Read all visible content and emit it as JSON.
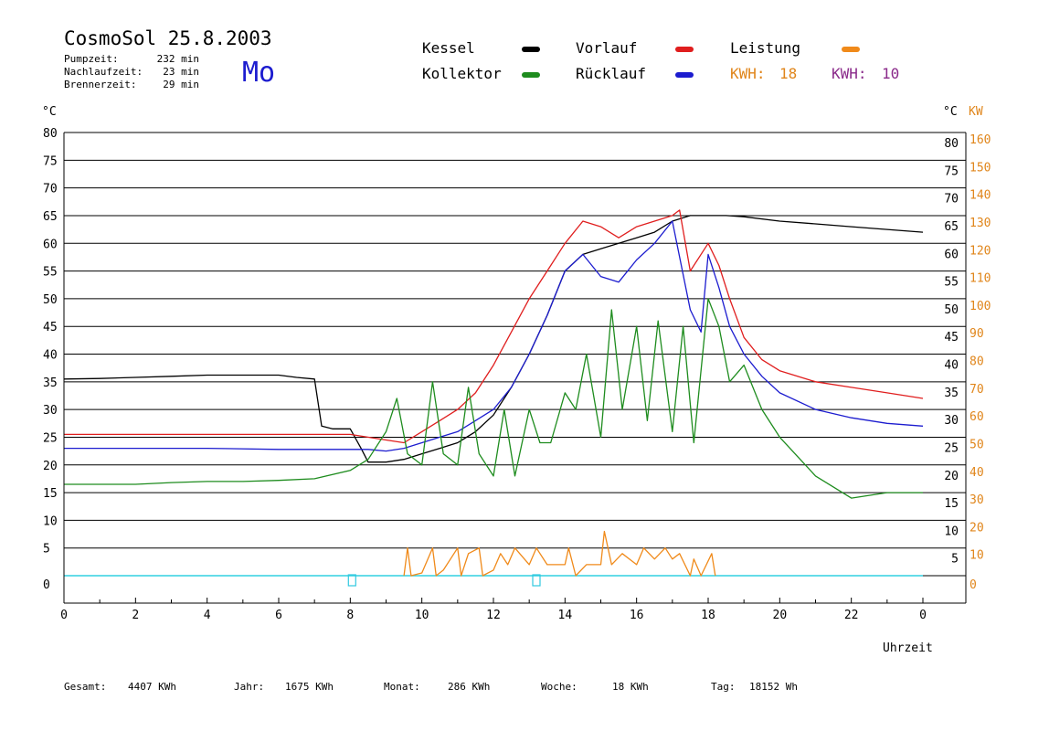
{
  "header": {
    "title": "CosmoSol 25.8.2003",
    "weekday": "Mo",
    "stats": [
      {
        "label": "Pumpzeit:",
        "value": "232 min"
      },
      {
        "label": "Nachlaufzeit:",
        "value": "23 min"
      },
      {
        "label": "Brennerzeit:",
        "value": "29 min"
      }
    ]
  },
  "legend": {
    "kessel": {
      "label": "Kessel",
      "color": "#000000"
    },
    "vorlauf": {
      "label": "Vorlauf",
      "color": "#e01e1e"
    },
    "leistung": {
      "label": "Leistung",
      "color": "#f08a1a"
    },
    "kollektor": {
      "label": "Kollektor",
      "color": "#1e8c1e"
    },
    "ruecklauf": {
      "label": "Rücklauf",
      "color": "#1c1ccf"
    },
    "kwh_orange": {
      "label": "KWH:",
      "value": "18",
      "color": "#e0851a"
    },
    "kwh_purple": {
      "label": "KWH:",
      "value": "10",
      "color": "#8a2a8a"
    }
  },
  "footer": {
    "gesamt": {
      "label": "Gesamt:",
      "value": "4407 KWh"
    },
    "jahr": {
      "label": "Jahr:",
      "value": "1675 KWh"
    },
    "monat": {
      "label": "Monat:",
      "value": "286 KWh"
    },
    "woche": {
      "label": "Woche:",
      "value": "18 KWh"
    },
    "tag": {
      "label": "Tag:",
      "value": "18152 Wh"
    }
  },
  "chart_data": {
    "type": "line",
    "xlabel": "Uhrzeit",
    "x_ticks": [
      "0",
      "2",
      "4",
      "6",
      "8",
      "10",
      "12",
      "14",
      "16",
      "18",
      "20",
      "22",
      "0"
    ],
    "xlim": [
      0,
      24
    ],
    "ylabel_left": "°C",
    "ylabel_right": "°C",
    "ylabel_right2": "KW",
    "ylim": [
      0,
      80
    ],
    "y_ticks": [
      "0",
      "5",
      "10",
      "15",
      "20",
      "25",
      "30",
      "35",
      "40",
      "45",
      "50",
      "55",
      "60",
      "65",
      "70",
      "75",
      "80"
    ],
    "y_ticks_right": [
      "",
      "5",
      "10",
      "15",
      "20",
      "25",
      "30",
      "35",
      "40",
      "45",
      "50",
      "55",
      "60",
      "65",
      "70",
      "75",
      "80"
    ],
    "kw_ticks": [
      "0",
      "10",
      "20",
      "30",
      "40",
      "50",
      "60",
      "70",
      "80",
      "90",
      "100",
      "110",
      "120",
      "130",
      "140",
      "150",
      "160"
    ],
    "grid": true,
    "series": [
      {
        "name": "Kessel",
        "color": "#000000",
        "x": [
          0,
          1,
          2,
          3,
          4,
          5,
          6,
          6.5,
          7,
          7.2,
          7.5,
          8,
          8.3,
          8.5,
          9,
          9.5,
          10,
          10.5,
          11,
          11.5,
          12,
          12.5,
          13,
          13.5,
          14,
          14.5,
          15,
          15.5,
          16,
          16.5,
          17,
          17.5,
          18,
          18.5,
          19,
          20,
          21,
          22,
          23,
          24
        ],
        "y": [
          35.5,
          35.6,
          35.8,
          36,
          36.2,
          36.2,
          36.2,
          35.8,
          35.5,
          27,
          26.5,
          26.5,
          23,
          20.5,
          20.5,
          21,
          22,
          23,
          24,
          26,
          29,
          34,
          40,
          47,
          55,
          58,
          59,
          60,
          61,
          62,
          64,
          65,
          65,
          65,
          64.8,
          64,
          63.5,
          63,
          62.5,
          62
        ]
      },
      {
        "name": "Vorlauf",
        "color": "#e01e1e",
        "x": [
          0,
          2,
          4,
          6,
          8,
          9,
          9.5,
          10,
          10.5,
          11,
          11.5,
          12,
          12.5,
          13,
          13.5,
          14,
          14.5,
          15,
          15.5,
          16,
          16.5,
          17,
          17.2,
          17.5,
          18,
          18.3,
          18.6,
          19,
          19.5,
          20,
          21,
          22,
          23,
          24
        ],
        "y": [
          25.5,
          25.5,
          25.5,
          25.5,
          25.5,
          24.5,
          24,
          26,
          28,
          30,
          33,
          38,
          44,
          50,
          55,
          60,
          64,
          63,
          61,
          63,
          64,
          65,
          66,
          55,
          60,
          56,
          50,
          43,
          39,
          37,
          35,
          34,
          33,
          32
        ]
      },
      {
        "name": "Rücklauf",
        "color": "#1c1ccf",
        "x": [
          0,
          2,
          4,
          6,
          8,
          8.5,
          9,
          9.5,
          10,
          10.5,
          11,
          11.5,
          12,
          12.5,
          13,
          13.5,
          14,
          14.5,
          15,
          15.5,
          16,
          16.5,
          17,
          17.5,
          17.8,
          18,
          18.3,
          18.6,
          19,
          19.5,
          20,
          21,
          22,
          23,
          24
        ],
        "y": [
          23,
          23,
          23,
          22.8,
          22.8,
          22.8,
          22.5,
          23,
          24,
          25,
          26,
          28,
          30,
          34,
          40,
          47,
          55,
          58,
          54,
          53,
          57,
          60,
          64,
          48,
          44,
          58,
          52,
          45,
          40,
          36,
          33,
          30,
          28.5,
          27.5,
          27
        ]
      },
      {
        "name": "Kollektor",
        "color": "#1e8c1e",
        "x": [
          0,
          1,
          2,
          3,
          4,
          5,
          6,
          7,
          8,
          8.5,
          9,
          9.3,
          9.6,
          10,
          10.3,
          10.6,
          11,
          11.3,
          11.6,
          12,
          12.3,
          12.6,
          13,
          13.3,
          13.6,
          14,
          14.3,
          14.6,
          15,
          15.3,
          15.6,
          16,
          16.3,
          16.6,
          17,
          17.3,
          17.6,
          18,
          18.3,
          18.6,
          19,
          19.5,
          20,
          21,
          22,
          23,
          24
        ],
        "y": [
          16.5,
          16.5,
          16.5,
          16.8,
          17,
          17,
          17.2,
          17.5,
          19,
          21,
          26,
          32,
          22,
          20,
          35,
          22,
          20,
          34,
          22,
          18,
          30,
          18,
          30,
          24,
          24,
          33,
          30,
          40,
          25,
          48,
          30,
          45,
          28,
          46,
          26,
          45,
          24,
          50,
          45,
          35,
          38,
          30,
          25,
          18,
          14,
          15,
          15
        ]
      },
      {
        "name": "Leistung",
        "color": "#f08a1a",
        "x": [
          9.5,
          9.6,
          9.7,
          10,
          10.3,
          10.4,
          10.6,
          11,
          11.1,
          11.3,
          11.6,
          11.7,
          12,
          12.2,
          12.4,
          12.6,
          13,
          13.2,
          13.5,
          14,
          14.1,
          14.3,
          14.6,
          15,
          15.1,
          15.3,
          15.6,
          16,
          16.2,
          16.5,
          16.8,
          17,
          17.2,
          17.5,
          17.6,
          17.8,
          18.1,
          18.2
        ],
        "y": [
          0,
          5,
          0,
          0.5,
          5,
          0,
          1,
          5,
          0,
          4,
          5,
          0,
          1,
          4,
          2,
          5,
          2,
          5,
          2,
          2,
          5,
          0,
          2,
          2,
          8,
          2,
          4,
          2,
          5,
          3,
          5,
          3,
          4,
          0,
          3,
          0,
          4,
          0
        ]
      }
    ]
  }
}
